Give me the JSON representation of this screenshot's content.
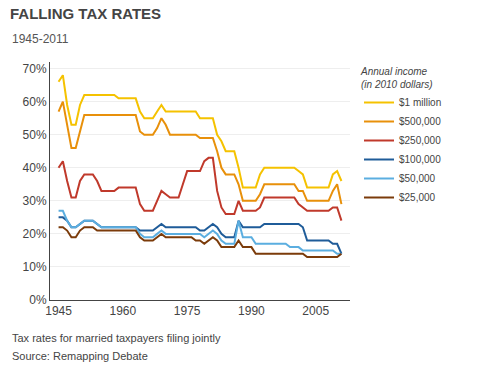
{
  "chart_data": {
    "type": "line",
    "title": "FALLING TAX RATES",
    "subtitle": "1945-2011",
    "annotations": [
      "Tax rates for married taxpayers filing jointly",
      "Source: Remapping Debate"
    ],
    "legend_title": "Annual income\n(in 2010 dollars)",
    "legend": "right",
    "grid": true,
    "x": [
      1945,
      1946,
      1947,
      1948,
      1949,
      1950,
      1951,
      1952,
      1953,
      1954,
      1955,
      1956,
      1957,
      1958,
      1959,
      1960,
      1961,
      1962,
      1963,
      1964,
      1965,
      1966,
      1967,
      1968,
      1969,
      1970,
      1971,
      1972,
      1973,
      1974,
      1975,
      1976,
      1977,
      1978,
      1979,
      1980,
      1981,
      1982,
      1983,
      1984,
      1985,
      1986,
      1987,
      1988,
      1989,
      1990,
      1991,
      1992,
      1993,
      1994,
      1995,
      1996,
      1997,
      1998,
      1999,
      2000,
      2001,
      2002,
      2003,
      2004,
      2005,
      2006,
      2007,
      2008,
      2009,
      2010,
      2011
    ],
    "series": [
      {
        "name": "$1 million",
        "color": "#F5C200",
        "values": [
          66,
          68,
          59,
          53,
          53,
          59,
          62,
          62,
          62,
          62,
          62,
          62,
          62,
          62,
          61,
          61,
          61,
          61,
          61,
          57,
          55,
          55,
          55,
          57,
          59,
          57,
          57,
          57,
          57,
          57,
          57,
          57,
          57,
          55,
          55,
          55,
          55,
          50,
          48,
          45,
          45,
          45,
          40,
          34,
          34,
          34,
          34,
          38,
          40,
          40,
          40,
          40,
          40,
          40,
          40,
          40,
          39,
          38,
          34,
          34,
          34,
          34,
          34,
          34,
          38,
          39,
          36
        ]
      },
      {
        "name": "$500,000",
        "color": "#E8900A",
        "values": [
          57,
          60,
          53,
          46,
          46,
          51,
          56,
          56,
          56,
          56,
          56,
          56,
          56,
          56,
          56,
          56,
          56,
          56,
          56,
          51,
          50,
          50,
          50,
          52,
          55,
          53,
          50,
          50,
          50,
          50,
          50,
          50,
          50,
          49,
          49,
          49,
          49,
          45,
          40,
          38,
          38,
          38,
          35,
          30,
          30,
          30,
          30,
          32,
          35,
          35,
          35,
          35,
          35,
          35,
          35,
          35,
          33,
          33,
          30,
          30,
          30,
          30,
          30,
          30,
          33,
          35,
          29
        ]
      },
      {
        "name": "$250,000",
        "color": "#C0392B",
        "values": [
          40,
          42,
          36,
          31,
          31,
          36,
          38,
          38,
          38,
          36,
          33,
          33,
          33,
          33,
          34,
          34,
          34,
          34,
          34,
          29,
          27,
          27,
          27,
          30,
          33,
          32,
          31,
          31,
          31,
          35,
          39,
          39,
          39,
          39,
          42,
          43,
          43,
          33,
          28,
          26,
          26,
          26,
          30,
          27,
          27,
          27,
          27,
          28,
          31,
          31,
          31,
          31,
          31,
          31,
          31,
          31,
          29,
          28,
          27,
          27,
          27,
          27,
          27,
          27,
          28,
          28,
          24
        ]
      },
      {
        "name": "$100,000",
        "color": "#1F5C99",
        "values": [
          25,
          25,
          24,
          22,
          22,
          23,
          24,
          24,
          24,
          23,
          22,
          22,
          22,
          22,
          22,
          22,
          22,
          22,
          22,
          21,
          21,
          21,
          21,
          22,
          23,
          22,
          22,
          22,
          22,
          22,
          22,
          22,
          22,
          21,
          21,
          22,
          23,
          22,
          20,
          19,
          19,
          19,
          24,
          22,
          22,
          22,
          22,
          22,
          23,
          23,
          23,
          23,
          23,
          23,
          23,
          23,
          23,
          22,
          18,
          18,
          18,
          18,
          18,
          18,
          17,
          17,
          14
        ]
      },
      {
        "name": "$50,000",
        "color": "#5BAEE0",
        "values": [
          27,
          27,
          24,
          22,
          22,
          23,
          24,
          24,
          24,
          23,
          22,
          22,
          22,
          22,
          22,
          22,
          22,
          22,
          22,
          20,
          19,
          19,
          19,
          20,
          21,
          20,
          20,
          20,
          20,
          20,
          20,
          20,
          20,
          20,
          19,
          20,
          21,
          20,
          18,
          17,
          17,
          17,
          24,
          19,
          19,
          19,
          17,
          17,
          17,
          17,
          17,
          17,
          17,
          17,
          16,
          16,
          16,
          15,
          15,
          15,
          15,
          15,
          15,
          15,
          15,
          14,
          14
        ]
      },
      {
        "name": "$25,000",
        "color": "#7B3B0A",
        "values": [
          22,
          22,
          21,
          19,
          19,
          21,
          22,
          22,
          22,
          21,
          21,
          21,
          21,
          21,
          21,
          21,
          21,
          21,
          21,
          19,
          18,
          18,
          18,
          19,
          20,
          19,
          19,
          19,
          19,
          19,
          19,
          19,
          18,
          18,
          17,
          18,
          19,
          18,
          16,
          16,
          16,
          16,
          18,
          16,
          16,
          16,
          14,
          14,
          14,
          14,
          14,
          14,
          14,
          14,
          14,
          14,
          14,
          14,
          13,
          13,
          13,
          13,
          13,
          13,
          13,
          13,
          14
        ]
      }
    ],
    "xlim": [
      1943,
      2013
    ],
    "xticks": [
      1945,
      1960,
      1975,
      1990,
      2005
    ],
    "ylim": [
      0,
      72
    ],
    "yticks": [
      {
        "value": 0,
        "label": "0%"
      },
      {
        "value": 10,
        "label": "10%"
      },
      {
        "value": 20,
        "label": "20%"
      },
      {
        "value": 30,
        "label": "30%"
      },
      {
        "value": 40,
        "label": "40%"
      },
      {
        "value": 50,
        "label": "50%"
      },
      {
        "value": 60,
        "label": "60%"
      },
      {
        "value": 70,
        "label": "70%"
      }
    ]
  }
}
